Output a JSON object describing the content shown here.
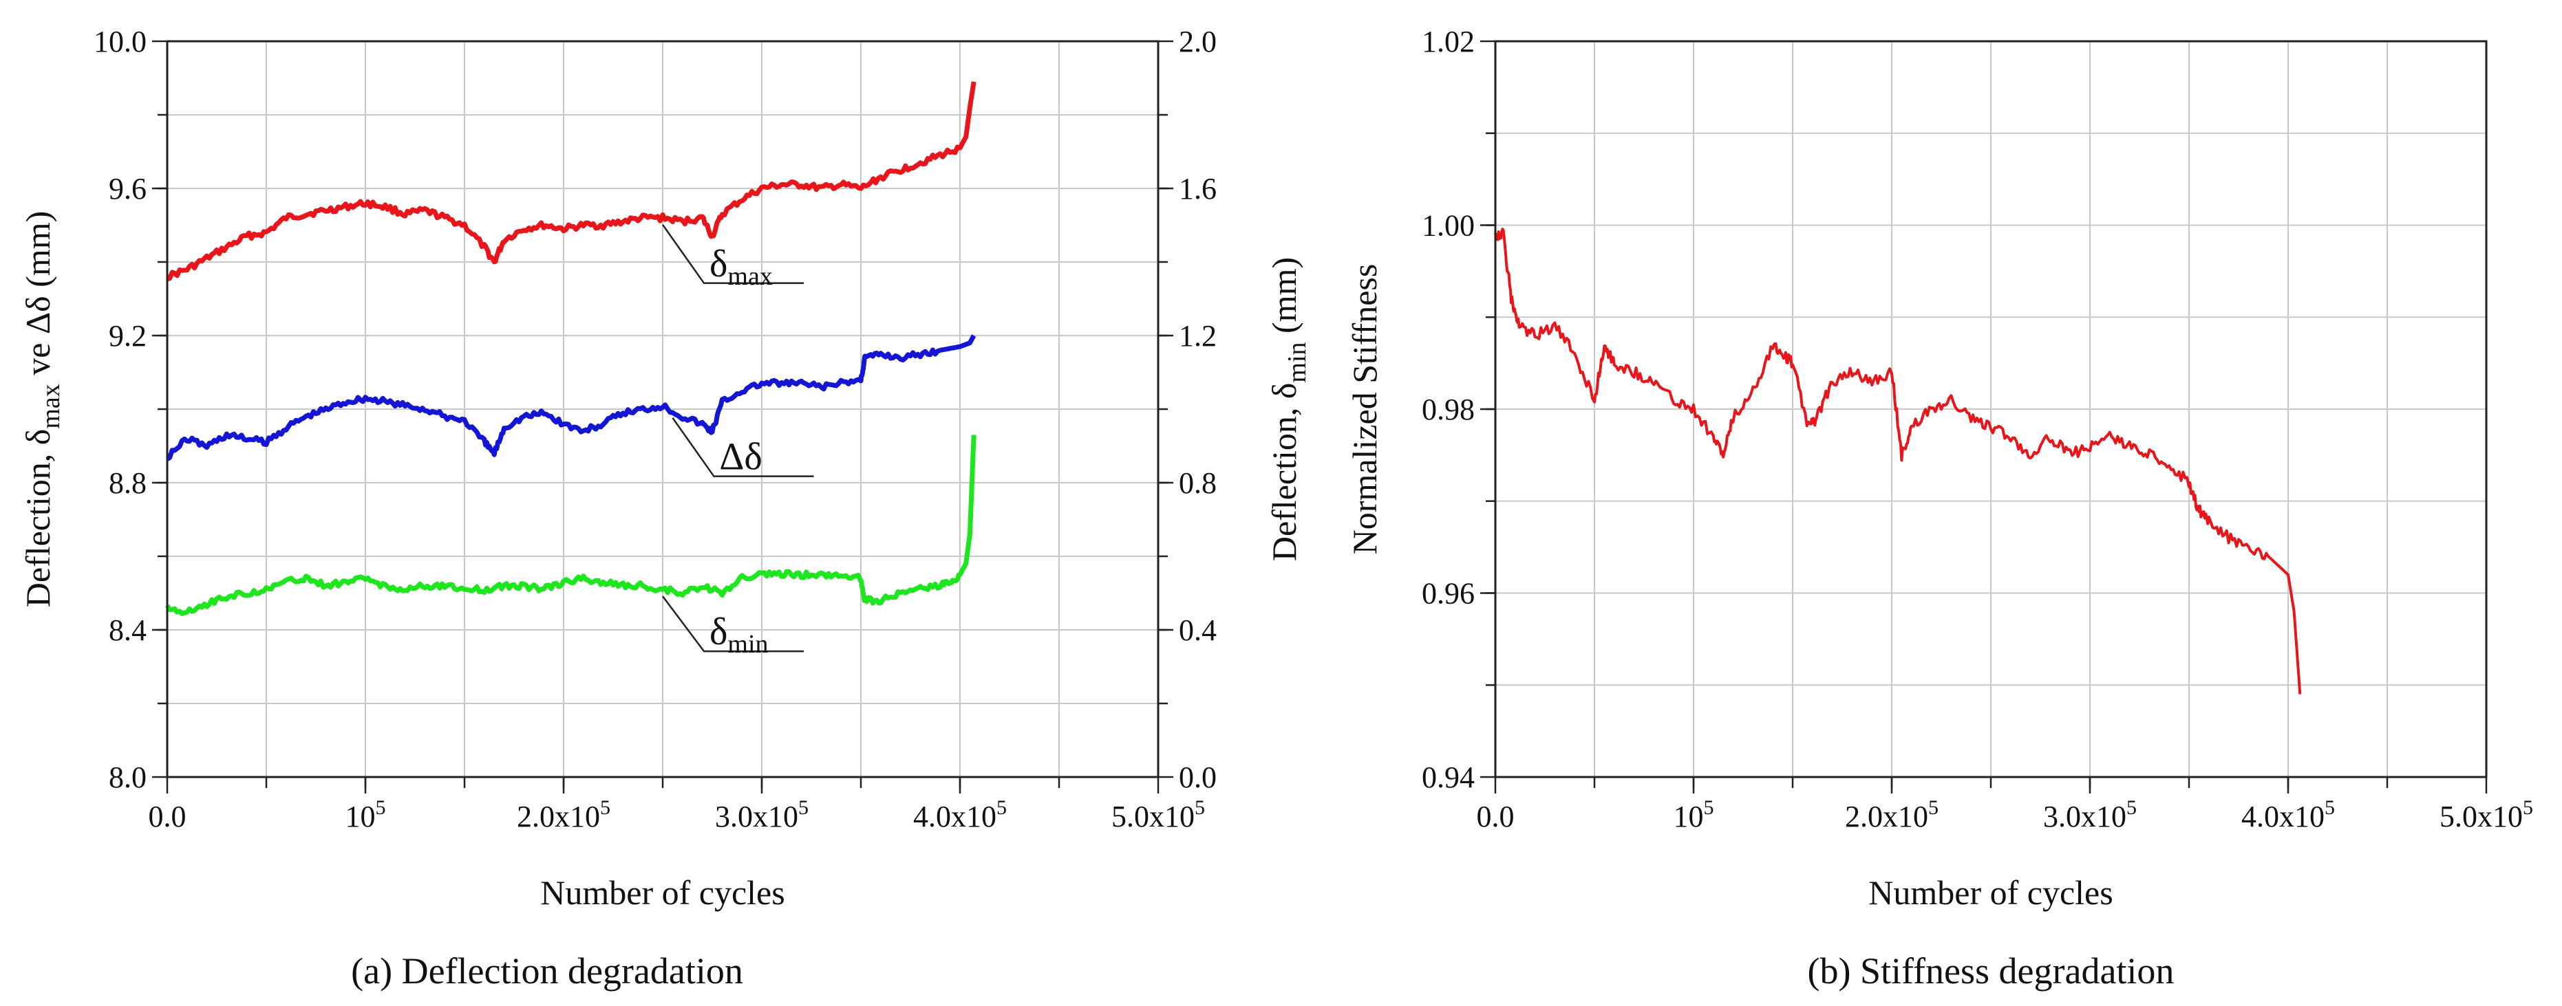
{
  "chart_data": [
    {
      "type": "line",
      "caption": "(a) Deflection degradation",
      "xlabel": "Number of cycles",
      "xlim": [
        0,
        500000
      ],
      "x_ticks": [
        0,
        100000,
        200000,
        300000,
        400000,
        500000
      ],
      "x_tick_labels": [
        {
          "base": "0.0",
          "exp": ""
        },
        {
          "base": "10",
          "exp": "5"
        },
        {
          "base": "2.0x10",
          "exp": "5"
        },
        {
          "base": "3.0x10",
          "exp": "5"
        },
        {
          "base": "4.0x10",
          "exp": "5"
        },
        {
          "base": "5.0x10",
          "exp": "5"
        }
      ],
      "ylabel_left": {
        "pre": "Deflection, ",
        "sym": "δ",
        "sub": "max",
        "post": " ve Δδ (mm)"
      },
      "ylim_left": [
        8.0,
        10.0
      ],
      "y_ticks_left": [
        8.0,
        8.4,
        8.8,
        9.2,
        9.6,
        10.0
      ],
      "y_tick_labels_left": [
        "8.0",
        "8.4",
        "8.8",
        "9.2",
        "9.6",
        "10.0"
      ],
      "ylabel_right": {
        "pre": "Deflection, ",
        "sym": "δ",
        "sub": "min",
        "post": " (mm)"
      },
      "ylim_right": [
        0.0,
        2.0
      ],
      "y_ticks_right": [
        0.0,
        0.4,
        0.8,
        1.2,
        1.6,
        2.0
      ],
      "y_tick_labels_right": [
        "0.0",
        "0.4",
        "0.8",
        "1.2",
        "1.6",
        "2.0"
      ],
      "series": [
        {
          "name": "δmax",
          "label_sym": "δ",
          "label_sub": "max",
          "color": "#e8161b",
          "axis": "left",
          "x": [
            0,
            10000,
            20000,
            30000,
            40000,
            50000,
            60000,
            70000,
            80000,
            90000,
            100000,
            110000,
            120000,
            130000,
            140000,
            150000,
            160000,
            165000,
            170000,
            180000,
            190000,
            200000,
            210000,
            220000,
            230000,
            240000,
            250000,
            260000,
            270000,
            275000,
            280000,
            290000,
            300000,
            310000,
            320000,
            330000,
            340000,
            350000,
            360000,
            370000,
            380000,
            390000,
            400000,
            403000,
            405000,
            407000
          ],
          "values": [
            9.36,
            9.38,
            9.41,
            9.44,
            9.47,
            9.48,
            9.52,
            9.53,
            9.54,
            9.55,
            9.56,
            9.55,
            9.53,
            9.54,
            9.52,
            9.5,
            9.44,
            9.4,
            9.46,
            9.49,
            9.5,
            9.49,
            9.5,
            9.5,
            9.51,
            9.52,
            9.52,
            9.51,
            9.52,
            9.47,
            9.53,
            9.57,
            9.6,
            9.61,
            9.61,
            9.6,
            9.61,
            9.6,
            9.63,
            9.65,
            9.67,
            9.69,
            9.71,
            9.74,
            9.82,
            9.89
          ]
        },
        {
          "name": "Δδ",
          "label_sym": "Δδ",
          "label_sub": "",
          "color": "#1515d6",
          "axis": "left",
          "x": [
            0,
            10000,
            20000,
            30000,
            40000,
            50000,
            60000,
            70000,
            80000,
            90000,
            100000,
            110000,
            120000,
            130000,
            140000,
            150000,
            160000,
            165000,
            170000,
            180000,
            190000,
            200000,
            210000,
            220000,
            230000,
            240000,
            250000,
            260000,
            270000,
            275000,
            280000,
            290000,
            300000,
            310000,
            320000,
            330000,
            340000,
            350000,
            352000,
            360000,
            370000,
            380000,
            390000,
            400000,
            405000,
            407000
          ],
          "values": [
            8.87,
            8.92,
            8.9,
            8.93,
            8.92,
            8.91,
            8.95,
            8.98,
            9.0,
            9.02,
            9.03,
            9.02,
            9.01,
            9.0,
            8.98,
            8.97,
            8.91,
            8.88,
            8.95,
            8.98,
            8.99,
            8.96,
            8.94,
            8.96,
            8.99,
            9.0,
            9.01,
            8.98,
            8.96,
            8.94,
            9.02,
            9.05,
            9.07,
            9.07,
            9.07,
            9.06,
            9.07,
            9.08,
            9.14,
            9.15,
            9.14,
            9.15,
            9.16,
            9.17,
            9.18,
            9.2
          ]
        },
        {
          "name": "δmin",
          "label_sym": "δ",
          "label_sub": "min",
          "color": "#1ee61e",
          "axis": "right",
          "x": [
            0,
            10000,
            20000,
            30000,
            40000,
            50000,
            60000,
            70000,
            80000,
            90000,
            100000,
            110000,
            120000,
            130000,
            140000,
            150000,
            160000,
            170000,
            180000,
            190000,
            200000,
            210000,
            220000,
            230000,
            240000,
            250000,
            260000,
            270000,
            280000,
            290000,
            300000,
            310000,
            320000,
            330000,
            340000,
            350000,
            352000,
            360000,
            370000,
            380000,
            390000,
            395000,
            400000,
            403000,
            405000,
            407000
          ],
          "values": [
            0.46,
            0.45,
            0.47,
            0.49,
            0.5,
            0.51,
            0.53,
            0.54,
            0.52,
            0.53,
            0.54,
            0.52,
            0.51,
            0.52,
            0.52,
            0.51,
            0.51,
            0.52,
            0.52,
            0.51,
            0.53,
            0.54,
            0.53,
            0.52,
            0.52,
            0.51,
            0.5,
            0.52,
            0.5,
            0.54,
            0.55,
            0.55,
            0.55,
            0.55,
            0.55,
            0.54,
            0.48,
            0.48,
            0.5,
            0.51,
            0.52,
            0.53,
            0.55,
            0.58,
            0.66,
            0.93
          ]
        }
      ]
    },
    {
      "type": "line",
      "caption": "(b) Stiffness degradation",
      "xlabel": "Number of cycles",
      "xlim": [
        0,
        500000
      ],
      "x_ticks": [
        0,
        100000,
        200000,
        300000,
        400000,
        500000
      ],
      "x_tick_labels": [
        {
          "base": "0.0",
          "exp": ""
        },
        {
          "base": "10",
          "exp": "5"
        },
        {
          "base": "2.0x10",
          "exp": "5"
        },
        {
          "base": "3.0x10",
          "exp": "5"
        },
        {
          "base": "4.0x10",
          "exp": "5"
        },
        {
          "base": "5.0x10",
          "exp": "5"
        }
      ],
      "ylabel": "Normalized Stiffness",
      "ylim": [
        0.94,
        1.02
      ],
      "y_ticks": [
        0.94,
        0.96,
        0.98,
        1.0,
        1.02
      ],
      "y_tick_labels": [
        "0.94",
        "0.96",
        "0.98",
        "1.00",
        "1.02"
      ],
      "series": [
        {
          "name": "Normalized Stiffness",
          "color": "#e8161b",
          "x": [
            0,
            4000,
            8000,
            12000,
            20000,
            30000,
            40000,
            50000,
            55000,
            60000,
            70000,
            80000,
            90000,
            100000,
            110000,
            115000,
            120000,
            130000,
            140000,
            145000,
            150000,
            158000,
            162000,
            170000,
            180000,
            190000,
            200000,
            205000,
            210000,
            220000,
            230000,
            240000,
            250000,
            260000,
            270000,
            280000,
            290000,
            300000,
            310000,
            320000,
            330000,
            340000,
            350000,
            355000,
            360000,
            370000,
            380000,
            390000,
            400000,
            403000,
            406000
          ],
          "values": [
            0.999,
            0.999,
            0.992,
            0.989,
            0.988,
            0.989,
            0.986,
            0.981,
            0.987,
            0.985,
            0.984,
            0.983,
            0.981,
            0.98,
            0.977,
            0.975,
            0.979,
            0.982,
            0.987,
            0.986,
            0.985,
            0.978,
            0.979,
            0.983,
            0.984,
            0.983,
            0.984,
            0.975,
            0.978,
            0.98,
            0.981,
            0.979,
            0.978,
            0.977,
            0.975,
            0.977,
            0.975,
            0.976,
            0.977,
            0.976,
            0.975,
            0.974,
            0.972,
            0.969,
            0.968,
            0.966,
            0.965,
            0.964,
            0.962,
            0.958,
            0.949
          ]
        }
      ]
    }
  ]
}
